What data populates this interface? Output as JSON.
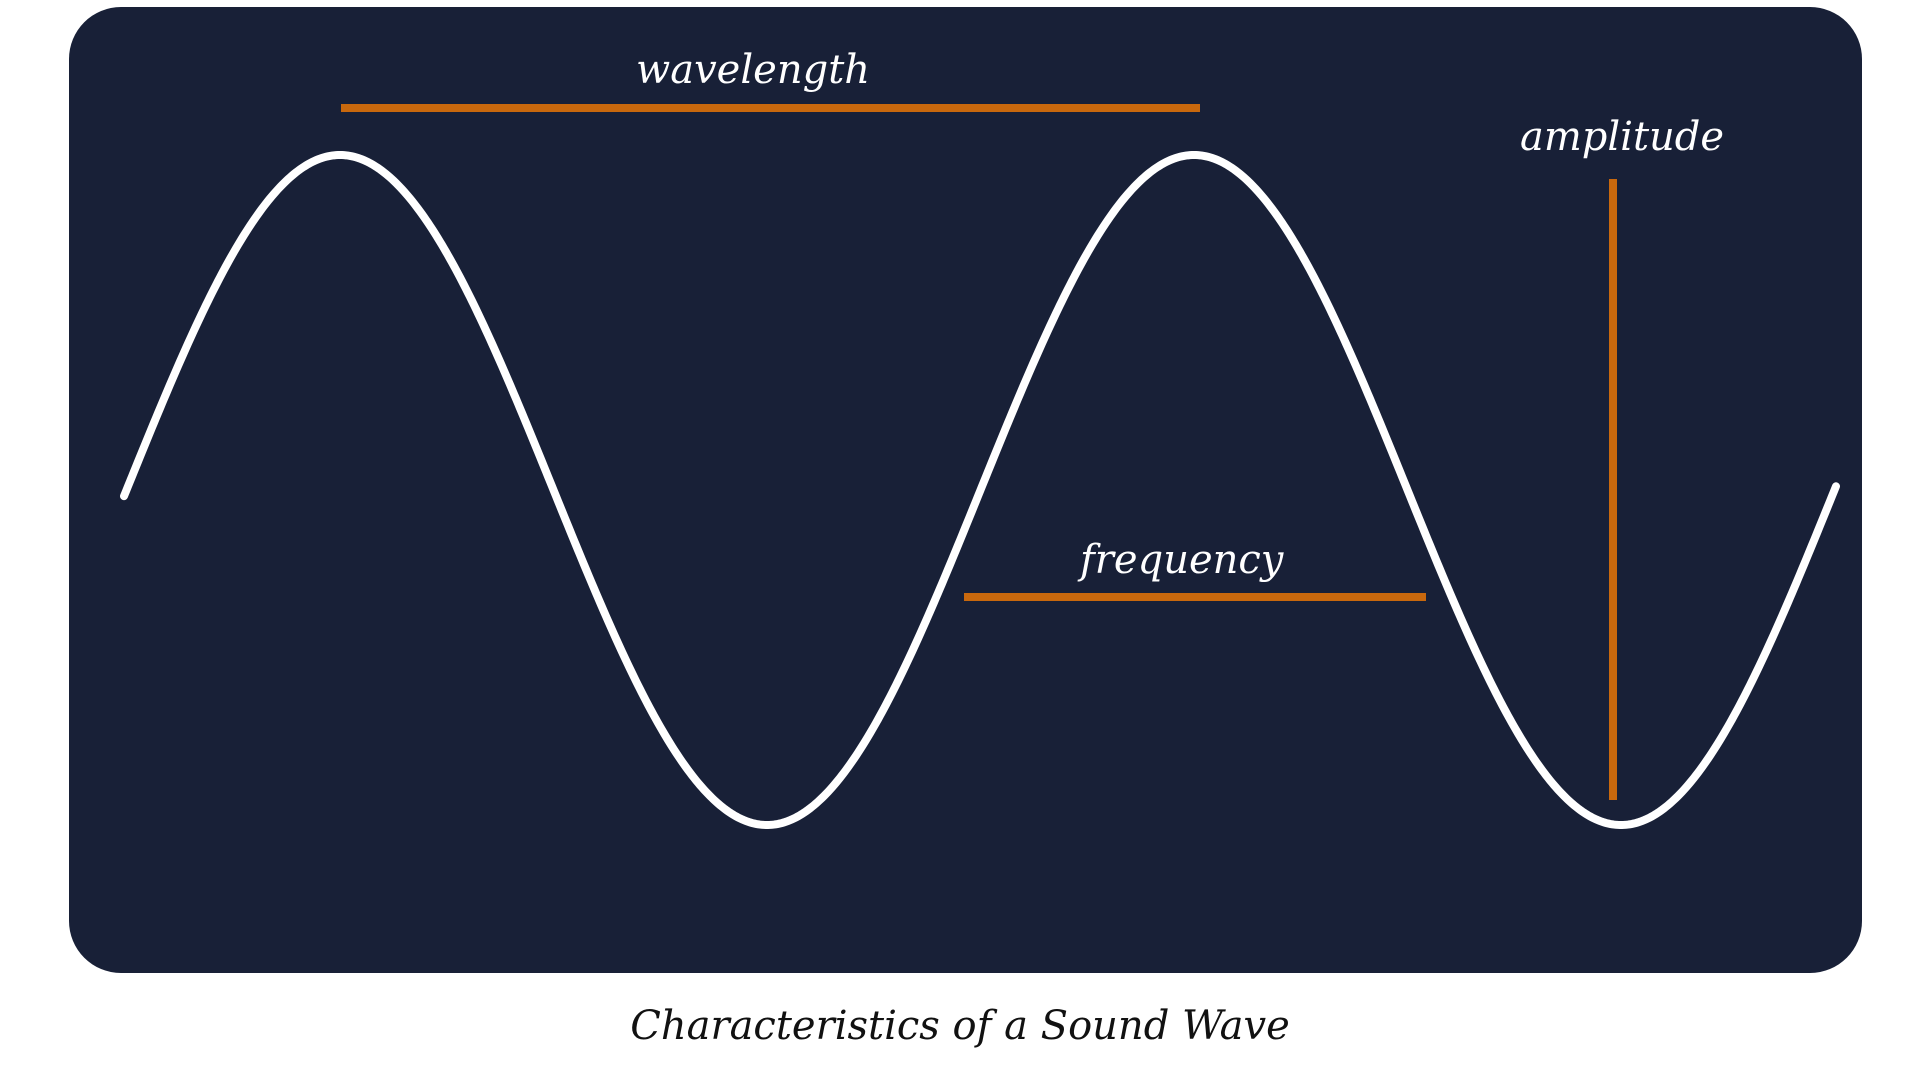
{
  "diagram": {
    "wavelength_label": "wavelength",
    "frequency_label": "frequency",
    "amplitude_label": "amplitude",
    "caption": "Characteristics of a Sound Wave"
  },
  "colors": {
    "panel": "#182037",
    "wave": "#ffffff",
    "marker": "#c8680d",
    "caption": "#111111"
  }
}
